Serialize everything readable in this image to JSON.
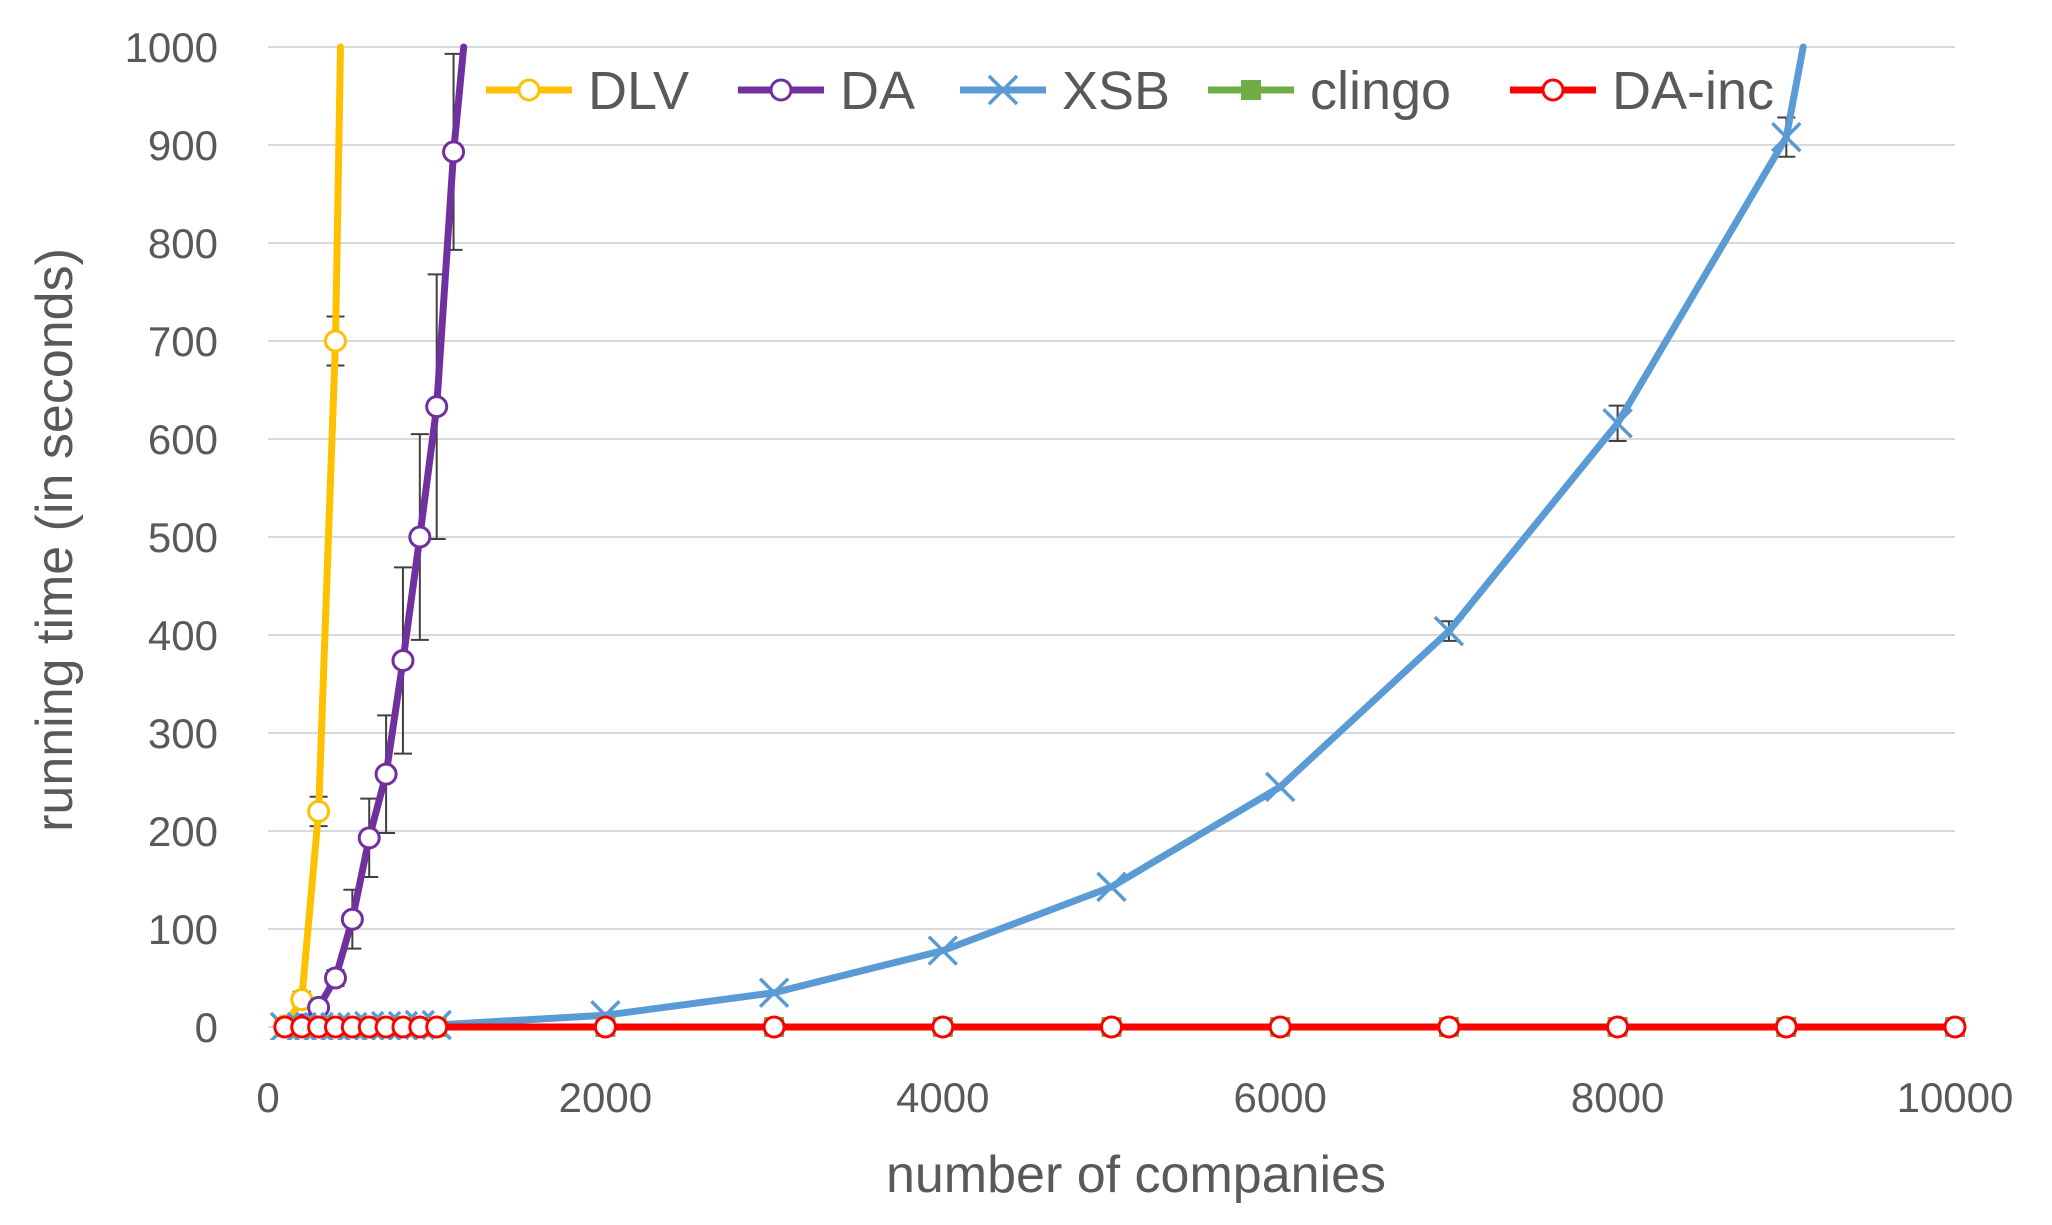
{
  "chart_data": {
    "type": "line",
    "title": "",
    "xlabel": "number of companies",
    "ylabel": "running time (in seconds)",
    "xlim": [
      0,
      10000
    ],
    "ylim": [
      0,
      1000
    ],
    "xticks": [
      0,
      2000,
      4000,
      6000,
      8000,
      10000
    ],
    "yticks": [
      0,
      100,
      200,
      300,
      400,
      500,
      600,
      700,
      800,
      900,
      1000
    ],
    "grid": "horizontal",
    "legend_position": "top",
    "series": [
      {
        "name": "DLV",
        "color": "#ffc000",
        "marker": "circle-open",
        "x": [
          100,
          200,
          300,
          400,
          430
        ],
        "y": [
          1,
          28,
          220,
          700,
          1000
        ],
        "marked": [
          true,
          true,
          true,
          true,
          false
        ],
        "err": [
          0,
          8,
          15,
          25,
          0
        ]
      },
      {
        "name": "DA",
        "color": "#7030a0",
        "marker": "circle-open",
        "x": [
          200,
          300,
          400,
          500,
          600,
          700,
          800,
          900,
          1000,
          1100,
          1160
        ],
        "y": [
          2,
          20,
          50,
          110,
          193,
          258,
          374,
          500,
          633,
          893,
          1000
        ],
        "marked": [
          true,
          true,
          true,
          true,
          true,
          true,
          true,
          true,
          true,
          true,
          false
        ],
        "err": [
          0,
          5,
          8,
          30,
          40,
          60,
          95,
          105,
          135,
          100,
          0
        ]
      },
      {
        "name": "XSB",
        "color": "#5b9bd5",
        "marker": "x",
        "x": [
          100,
          200,
          300,
          400,
          500,
          600,
          700,
          800,
          900,
          1000,
          2000,
          3000,
          4000,
          5000,
          6000,
          7000,
          8000,
          9000,
          9100
        ],
        "y": [
          0,
          0,
          0,
          0,
          0,
          1,
          1,
          1,
          2,
          2,
          12,
          35,
          78,
          143,
          245,
          404,
          616,
          908,
          1000
        ],
        "marked": [
          true,
          true,
          true,
          true,
          true,
          true,
          true,
          true,
          true,
          true,
          true,
          true,
          true,
          true,
          true,
          true,
          true,
          true,
          false
        ],
        "err": [
          0,
          0,
          0,
          0,
          0,
          0,
          0,
          0,
          0,
          0,
          0,
          0,
          0,
          0,
          0,
          10,
          18,
          20,
          0
        ]
      },
      {
        "name": "clingo",
        "color": "#70ad47",
        "marker": "square",
        "x": [
          100,
          200,
          300,
          400,
          500,
          600,
          700,
          800,
          900,
          1000,
          2000,
          3000,
          4000,
          5000,
          6000,
          7000,
          8000,
          9000,
          10000
        ],
        "y": [
          0,
          0,
          0,
          0,
          0,
          0,
          0,
          0,
          0,
          0,
          0,
          0,
          0,
          0,
          0,
          0,
          0,
          0,
          0
        ],
        "marked": [
          true,
          true,
          true,
          true,
          true,
          true,
          true,
          true,
          true,
          true,
          true,
          true,
          true,
          true,
          true,
          true,
          true,
          true,
          true
        ],
        "err": [
          0,
          0,
          0,
          0,
          0,
          0,
          0,
          0,
          0,
          0,
          0,
          0,
          0,
          0,
          0,
          0,
          0,
          0,
          0
        ]
      },
      {
        "name": "DA-inc",
        "color": "#ff0000",
        "marker": "circle-open",
        "x": [
          100,
          200,
          300,
          400,
          500,
          600,
          700,
          800,
          900,
          1000,
          2000,
          3000,
          4000,
          5000,
          6000,
          7000,
          8000,
          9000,
          10000
        ],
        "y": [
          0,
          0,
          0,
          0,
          0,
          0,
          0,
          0,
          0,
          0,
          0,
          0,
          0,
          0,
          0,
          0,
          0,
          0,
          0
        ],
        "marked": [
          true,
          true,
          true,
          true,
          true,
          true,
          true,
          true,
          true,
          true,
          true,
          true,
          true,
          true,
          true,
          true,
          true,
          true,
          true
        ],
        "err": [
          0,
          0,
          0,
          0,
          0,
          0,
          0,
          0,
          0,
          0,
          0,
          0,
          0,
          0,
          0,
          0,
          0,
          0,
          0
        ]
      }
    ]
  }
}
